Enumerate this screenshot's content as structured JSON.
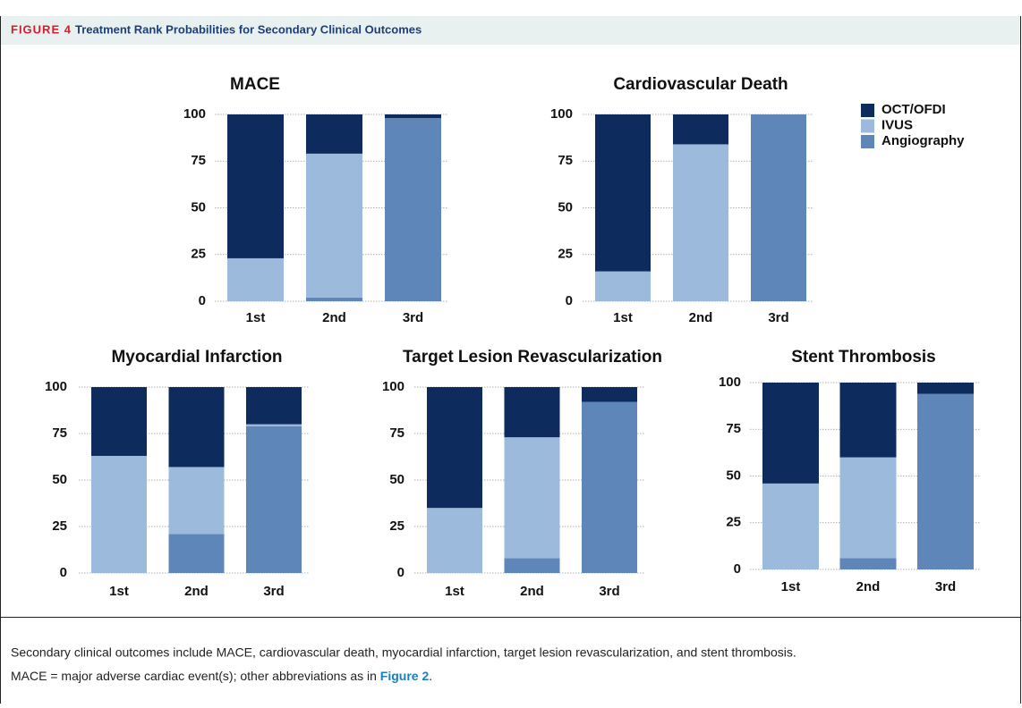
{
  "header": {
    "label": "FIGURE 4",
    "title": "Treatment Rank Probabilities for Secondary Clinical Outcomes"
  },
  "caption": {
    "line1": "Secondary clinical outcomes include MACE, cardiovascular death, myocardial infarction, target lesion revascularization, and stent thrombosis.",
    "line2": "MACE = major adverse cardiac event(s); other abbreviations as in ",
    "link": "Figure 2",
    "end": "."
  },
  "chart_data": [
    {
      "type": "bar",
      "stacked": true,
      "title": "MACE",
      "categories": [
        "1st",
        "2nd",
        "3rd"
      ],
      "series": [
        {
          "name": "OCT/OFDI",
          "color": "#0e2b5e",
          "values": [
            77,
            21,
            2
          ]
        },
        {
          "name": "IVUS",
          "color": "#9bbadc",
          "values": [
            23,
            77,
            0
          ]
        },
        {
          "name": "Angiography",
          "color": "#5e86b9",
          "values": [
            0,
            2,
            98
          ]
        }
      ],
      "ylim": [
        0,
        100
      ],
      "yticks": [
        0,
        25,
        50,
        75,
        100
      ],
      "grid": true,
      "legend": "right"
    },
    {
      "type": "bar",
      "stacked": true,
      "title": "Cardiovascular Death",
      "categories": [
        "1st",
        "2nd",
        "3rd"
      ],
      "series": [
        {
          "name": "OCT/OFDI",
          "color": "#0e2b5e",
          "values": [
            84,
            16,
            0
          ]
        },
        {
          "name": "IVUS",
          "color": "#9bbadc",
          "values": [
            16,
            84,
            0
          ]
        },
        {
          "name": "Angiography",
          "color": "#5e86b9",
          "values": [
            0,
            0,
            100
          ]
        }
      ],
      "ylim": [
        0,
        100
      ],
      "yticks": [
        0,
        25,
        50,
        75,
        100
      ],
      "grid": true
    },
    {
      "type": "bar",
      "stacked": true,
      "title": "Myocardial Infarction",
      "categories": [
        "1st",
        "2nd",
        "3rd"
      ],
      "series": [
        {
          "name": "OCT/OFDI",
          "color": "#0e2b5e",
          "values": [
            37,
            43,
            20
          ]
        },
        {
          "name": "IVUS",
          "color": "#9bbadc",
          "values": [
            63,
            36,
            1
          ]
        },
        {
          "name": "Angiography",
          "color": "#5e86b9",
          "values": [
            0,
            21,
            79
          ]
        }
      ],
      "ylim": [
        0,
        100
      ],
      "yticks": [
        0,
        25,
        50,
        75,
        100
      ],
      "grid": true
    },
    {
      "type": "bar",
      "stacked": true,
      "title": "Target Lesion Revascularization",
      "categories": [
        "1st",
        "2nd",
        "3rd"
      ],
      "series": [
        {
          "name": "OCT/OFDI",
          "color": "#0e2b5e",
          "values": [
            65,
            27,
            8
          ]
        },
        {
          "name": "IVUS",
          "color": "#9bbadc",
          "values": [
            35,
            65,
            0
          ]
        },
        {
          "name": "Angiography",
          "color": "#5e86b9",
          "values": [
            0,
            8,
            92
          ]
        }
      ],
      "ylim": [
        0,
        100
      ],
      "yticks": [
        0,
        25,
        50,
        75,
        100
      ],
      "grid": true
    },
    {
      "type": "bar",
      "stacked": true,
      "title": "Stent Thrombosis",
      "categories": [
        "1st",
        "2nd",
        "3rd"
      ],
      "series": [
        {
          "name": "OCT/OFDI",
          "color": "#0e2b5e",
          "values": [
            54,
            40,
            6
          ]
        },
        {
          "name": "IVUS",
          "color": "#9bbadc",
          "values": [
            46,
            54,
            0
          ]
        },
        {
          "name": "Angiography",
          "color": "#5e86b9",
          "values": [
            0,
            6,
            94
          ]
        }
      ],
      "ylim": [
        0,
        100
      ],
      "yticks": [
        0,
        25,
        50,
        75,
        100
      ],
      "grid": true
    }
  ]
}
